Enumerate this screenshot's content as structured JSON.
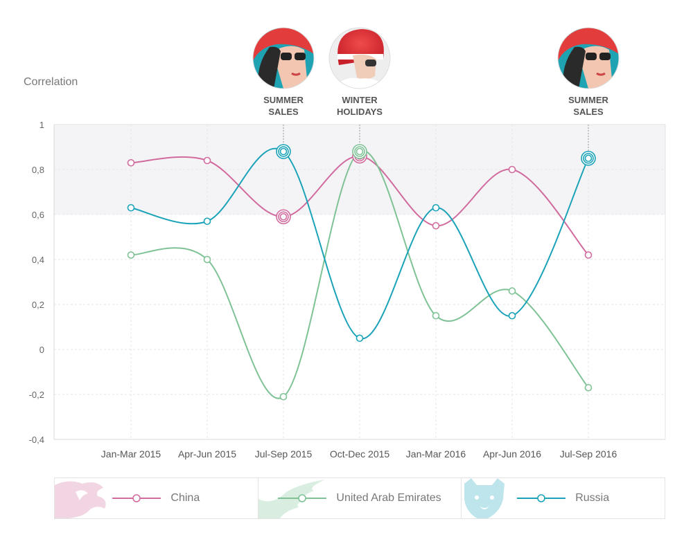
{
  "chart_data": {
    "type": "line",
    "ylabel": "Correlation",
    "categories": [
      "Jan-Mar 2015",
      "Apr-Jun 2015",
      "Jul-Sep 2015",
      "Oct-Dec 2015",
      "Jan-Mar 2016",
      "Apr-Jun 2016",
      "Jul-Sep 2016"
    ],
    "ylim": [
      -0.4,
      1
    ],
    "yticks": [
      "1",
      "0,8",
      "0,6",
      "0,4",
      "0,2",
      "0",
      "-0,2",
      "-0,4"
    ],
    "highlight_band": [
      0.6,
      1
    ],
    "grid": true,
    "legend_position": "bottom",
    "series": [
      {
        "name": "China",
        "color": "#d16b9e",
        "values": [
          0.83,
          0.84,
          0.59,
          0.86,
          0.55,
          0.8,
          0.42
        ]
      },
      {
        "name": "United Arab Emirates",
        "color": "#7ec295",
        "values": [
          0.42,
          0.4,
          -0.21,
          0.88,
          0.15,
          0.26,
          -0.17
        ]
      },
      {
        "name": "Russia",
        "color": "#1aa3b8",
        "values": [
          0.63,
          0.57,
          0.88,
          0.05,
          0.63,
          0.15,
          0.85
        ]
      }
    ],
    "annotations": [
      {
        "category_index": 2,
        "line1": "SUMMER",
        "line2": "SALES",
        "image": "summer-woman-photo"
      },
      {
        "category_index": 3,
        "line1": "WINTER",
        "line2": "HOLIDAYS",
        "image": "winter-woman-photo"
      },
      {
        "category_index": 6,
        "line1": "SUMMER",
        "line2": "SALES",
        "image": "summer-woman-photo"
      }
    ],
    "highlighted_points": [
      {
        "series": "China",
        "category_index": 2
      },
      {
        "series": "China",
        "category_index": 3
      },
      {
        "series": "United Arab Emirates",
        "category_index": 3
      },
      {
        "series": "Russia",
        "category_index": 2
      },
      {
        "series": "Russia",
        "category_index": 6
      }
    ]
  },
  "legend": {
    "items": [
      {
        "label": "China",
        "icon": "dragon-icon"
      },
      {
        "label": "United Arab Emirates",
        "icon": "falcon-icon"
      },
      {
        "label": "Russia",
        "icon": "bear-icon"
      }
    ]
  }
}
